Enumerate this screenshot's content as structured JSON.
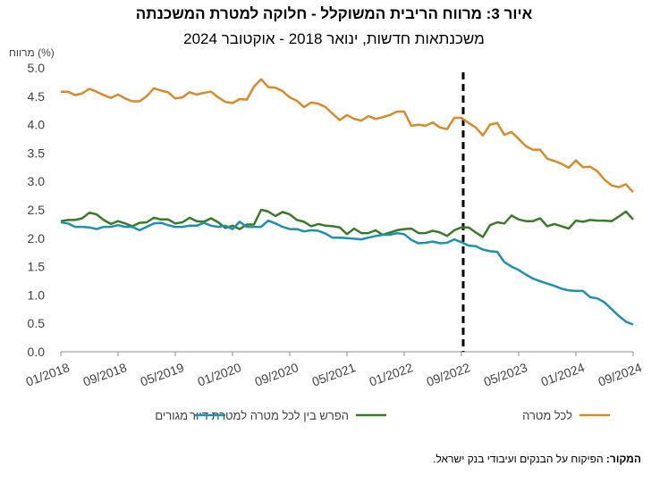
{
  "title": "איור 3: מרווח הריבית המשוקלל - חלוקה למטרת המשכנתה",
  "subtitle": "משכנתאות חדשות, ינואר 2018 - אוקטובר 2024",
  "source_label": "המקור:",
  "source_text": "הפיקוח על הבנקים ועיבודי בנק ישראל.",
  "chart_data": {
    "type": "line",
    "ylabel": "מרווח (%)",
    "ylim": [
      0,
      5
    ],
    "yticks": [
      "0.0",
      "0.5",
      "1.0",
      "1.5",
      "2.0",
      "2.5",
      "3.0",
      "3.5",
      "4.0",
      "4.5",
      "5.0"
    ],
    "x_start": "2018-01",
    "xtick_labels": [
      "01/2018",
      "09/2018",
      "05/2019",
      "01/2020",
      "09/2020",
      "05/2021",
      "01/2022",
      "09/2022",
      "05/2023",
      "01/2024",
      "09/2024"
    ],
    "vline_at": "2022-09",
    "legend_position": "bottom",
    "series": [
      {
        "name": "לכל מטרה",
        "color": "#D68A2B",
        "values": [
          4.58,
          4.58,
          4.52,
          4.55,
          4.63,
          4.58,
          4.52,
          4.47,
          4.53,
          4.46,
          4.41,
          4.41,
          4.5,
          4.64,
          4.6,
          4.57,
          4.46,
          4.48,
          4.57,
          4.53,
          4.56,
          4.58,
          4.48,
          4.4,
          4.38,
          4.45,
          4.44,
          4.67,
          4.8,
          4.66,
          4.65,
          4.59,
          4.48,
          4.42,
          4.31,
          4.39,
          4.37,
          4.31,
          4.19,
          4.08,
          4.17,
          4.1,
          4.07,
          4.15,
          4.1,
          4.13,
          4.17,
          4.23,
          4.23,
          3.98,
          4.0,
          3.98,
          4.04,
          3.95,
          3.92,
          4.12,
          4.12,
          4.03,
          3.95,
          3.81,
          4.0,
          4.03,
          3.82,
          3.87,
          3.75,
          3.62,
          3.56,
          3.56,
          3.4,
          3.36,
          3.31,
          3.24,
          3.37,
          3.25,
          3.26,
          3.18,
          3.03,
          2.93,
          2.9,
          2.95,
          2.81
        ]
      },
      {
        "name": "הפרש בין לכל מטרה למטרת דיור",
        "color": "#3A7A2A",
        "values": [
          2.3,
          2.32,
          2.32,
          2.35,
          2.45,
          2.42,
          2.32,
          2.25,
          2.3,
          2.26,
          2.21,
          2.27,
          2.28,
          2.36,
          2.33,
          2.33,
          2.26,
          2.28,
          2.36,
          2.3,
          2.29,
          2.35,
          2.28,
          2.18,
          2.22,
          2.16,
          2.24,
          2.24,
          2.5,
          2.47,
          2.39,
          2.46,
          2.42,
          2.32,
          2.29,
          2.21,
          2.25,
          2.22,
          2.21,
          2.19,
          2.07,
          2.17,
          2.09,
          2.09,
          2.14,
          2.06,
          2.1,
          2.14,
          2.16,
          2.17,
          2.09,
          2.09,
          2.13,
          2.1,
          2.04,
          2.14,
          2.19,
          2.19,
          2.1,
          2.02,
          2.23,
          2.28,
          2.26,
          2.4,
          2.33,
          2.3,
          2.3,
          2.35,
          2.21,
          2.25,
          2.21,
          2.17,
          2.31,
          2.29,
          2.32,
          2.31,
          2.31,
          2.3,
          2.38,
          2.47,
          2.33
        ]
      },
      {
        "name": "מגורים",
        "color": "#1E8FAD",
        "values": [
          2.28,
          2.26,
          2.2,
          2.2,
          2.19,
          2.16,
          2.2,
          2.2,
          2.23,
          2.2,
          2.2,
          2.14,
          2.2,
          2.26,
          2.27,
          2.23,
          2.2,
          2.2,
          2.22,
          2.22,
          2.27,
          2.22,
          2.2,
          2.22,
          2.16,
          2.29,
          2.2,
          2.2,
          2.2,
          2.31,
          2.26,
          2.2,
          2.16,
          2.16,
          2.12,
          2.14,
          2.13,
          2.08,
          2.01,
          2.01,
          2.0,
          1.99,
          1.98,
          2.01,
          2.04,
          2.06,
          2.06,
          2.09,
          2.07,
          1.97,
          1.91,
          1.92,
          1.94,
          1.91,
          1.92,
          1.98,
          1.93,
          1.87,
          1.86,
          1.8,
          1.77,
          1.76,
          1.58,
          1.5,
          1.44,
          1.36,
          1.29,
          1.24,
          1.2,
          1.16,
          1.11,
          1.08,
          1.07,
          1.07,
          0.96,
          0.94,
          0.87,
          0.75,
          0.63,
          0.53,
          0.48
        ]
      }
    ]
  }
}
